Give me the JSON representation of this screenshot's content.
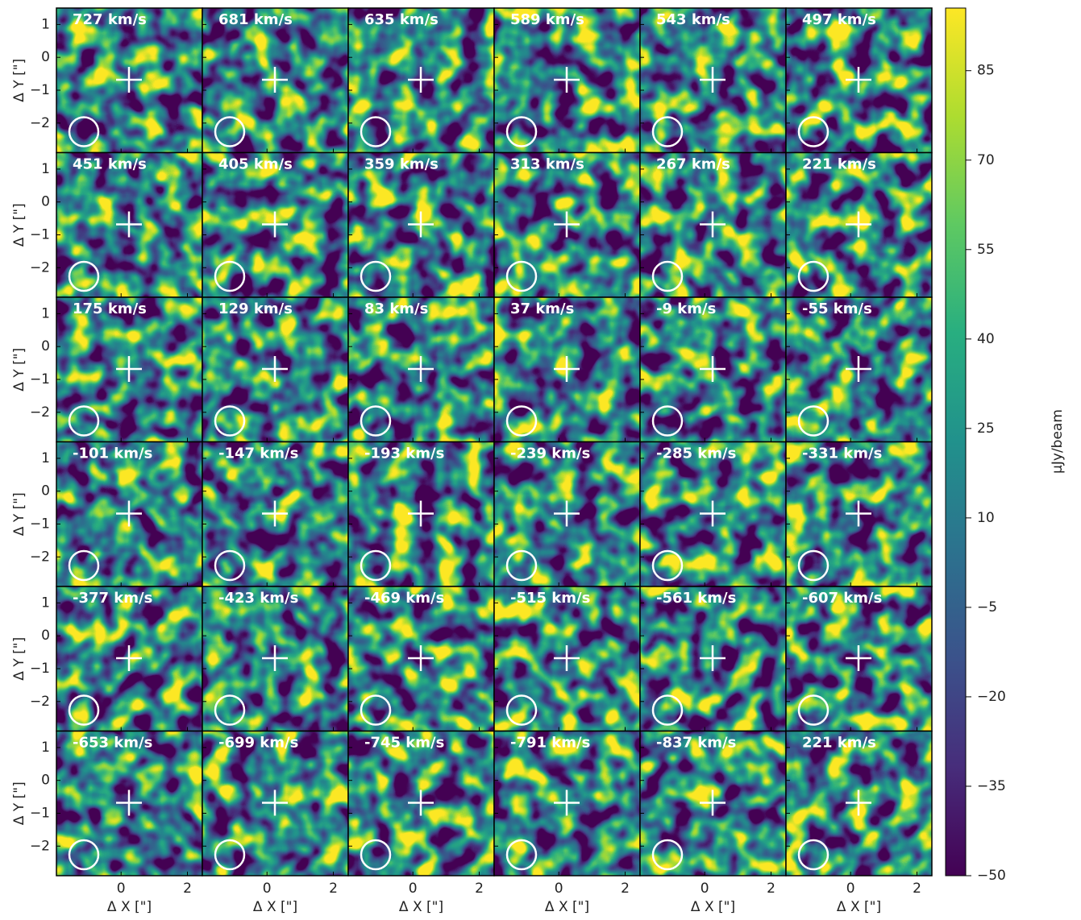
{
  "chart_data": {
    "type": "channel-map",
    "x_label": "Δ X [\"]",
    "y_label": "Δ Y [\"]",
    "xlim": [
      -1.95,
      2.45
    ],
    "ylim": [
      -2.9,
      1.5
    ],
    "xticks": [
      0,
      2
    ],
    "yticks": [
      1,
      0,
      {
        "value": -1,
        "label": "−1"
      },
      {
        "value": -2,
        "label": "−2"
      }
    ],
    "panels": [
      "727 km/s",
      "681 km/s",
      "635 km/s",
      "589 km/s",
      "543 km/s",
      "497 km/s",
      "451 km/s",
      "405 km/s",
      "359 km/s",
      "313 km/s",
      "267 km/s",
      "221 km/s",
      "175 km/s",
      "129 km/s",
      "83 km/s",
      "37 km/s",
      "-9 km/s",
      "-55 km/s",
      "-101 km/s",
      "-147 km/s",
      "-193 km/s",
      "-239 km/s",
      "-285 km/s",
      "-331 km/s",
      "-377 km/s",
      "-423 km/s",
      "-469 km/s",
      "-515 km/s",
      "-561 km/s",
      "-607 km/s",
      "-653 km/s",
      "-699 km/s",
      "-745 km/s",
      "-791 km/s",
      "-837 km/s",
      "221 km/s"
    ],
    "colorbar": {
      "label": "μJy/beam",
      "lim": [
        -50,
        95.5
      ],
      "ticks": [
        85,
        70,
        55,
        40,
        25,
        10,
        {
          "value": -5,
          "label": "−5"
        },
        {
          "value": -20,
          "label": "−20"
        },
        {
          "value": -35,
          "label": "−35"
        },
        {
          "value": -50,
          "label": "−50"
        }
      ]
    }
  }
}
